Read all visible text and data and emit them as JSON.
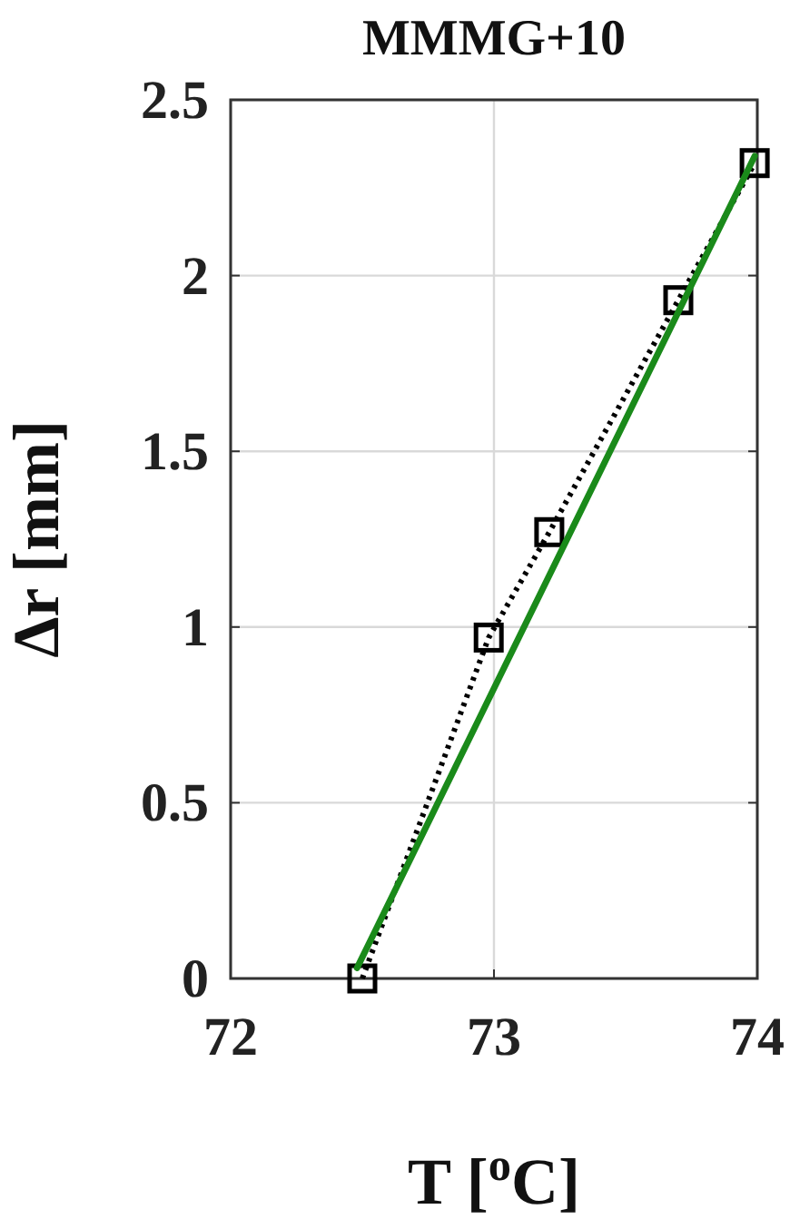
{
  "chart_data": {
    "type": "line",
    "title": "MMMG+10",
    "xlabel": "T [$^{o}$C]",
    "ylabel": "Δr [mm]",
    "xlim": [
      72,
      74
    ],
    "xticks": [
      72,
      73,
      74
    ],
    "ylim": [
      0,
      2.5
    ],
    "yticks": [
      0,
      0.5,
      1,
      1.5,
      2,
      2.5
    ],
    "grid": true,
    "series": [
      {
        "color": "#000000",
        "marker": "square",
        "line_style": "dotted",
        "x": [
          72.5,
          72.98,
          73.21,
          73.7,
          73.99
        ],
        "values": [
          0,
          0.97,
          1.27,
          1.93,
          2.32
        ]
      },
      {
        "color": "#1a8a1a",
        "marker": "none",
        "line_style": "solid",
        "x": [
          72.48,
          73.99
        ],
        "values": [
          0.03,
          2.34
        ]
      }
    ]
  }
}
